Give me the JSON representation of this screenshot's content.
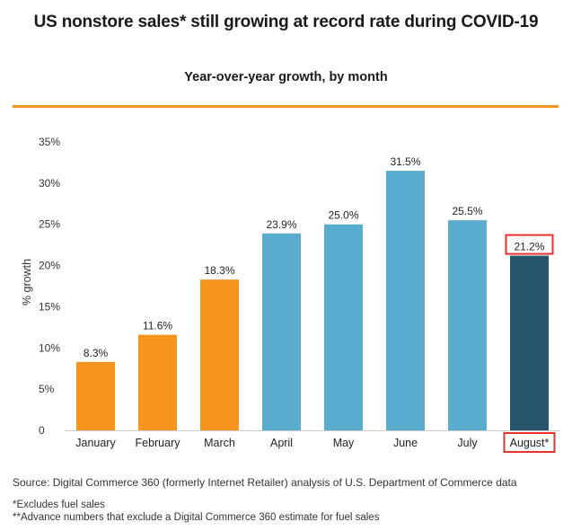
{
  "header": {
    "title": "US nonstore sales* still growing at record rate during COVID-19",
    "subtitle": "Year-over-year growth, by month"
  },
  "chart_data": {
    "type": "bar",
    "title": "US nonstore sales* still growing at record rate during COVID-19",
    "subtitle": "Year-over-year growth, by month",
    "xlabel": "",
    "ylabel": "% growth",
    "ylim": [
      0,
      35
    ],
    "yticks": [
      0,
      5,
      10,
      15,
      20,
      25,
      30,
      35
    ],
    "ytick_labels": [
      "0",
      "5%",
      "10%",
      "15%",
      "20%",
      "25%",
      "30%",
      "35%"
    ],
    "grid": false,
    "categories": [
      "January",
      "February",
      "March",
      "April",
      "May",
      "June",
      "July",
      "August*"
    ],
    "values": [
      8.3,
      11.6,
      18.3,
      23.9,
      25.0,
      31.5,
      25.5,
      21.2
    ],
    "value_labels": [
      "8.3%",
      "11.6%",
      "18.3%",
      "23.9%",
      "25.0%",
      "31.5%",
      "25.5%",
      "21.2%"
    ],
    "bar_colors": [
      "#f7941d",
      "#f7941d",
      "#f7941d",
      "#5aaccf",
      "#5aaccf",
      "#5aaccf",
      "#5aaccf",
      "#27556c"
    ],
    "highlight_color": "#e8322f",
    "highlighted_category": "August*"
  },
  "footer": {
    "source": "Source: Digital Commerce 360 (formerly Internet Retailer) analysis of U.S. Department of Commerce data",
    "note1": "*Excludes fuel sales",
    "note2": "**Advance numbers that exclude a Digital Commerce 360 estimate for fuel sales"
  }
}
